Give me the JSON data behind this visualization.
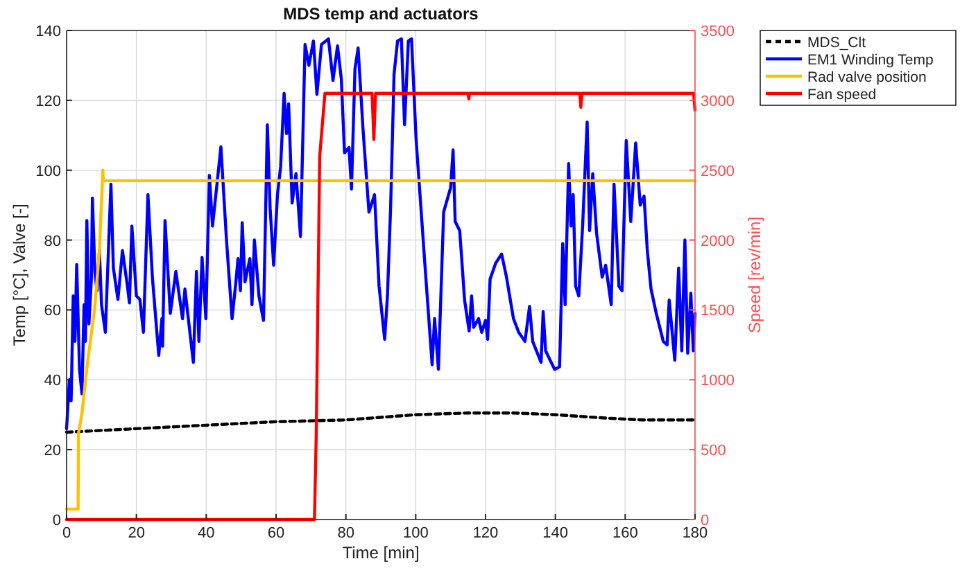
{
  "chart_data": {
    "type": "line",
    "title": "MDS temp and actuators",
    "xlabel": "Time [min]",
    "ylabel": "Temp [°C], Valve [-]",
    "y2label": "Speed [rev/min]",
    "xlim": [
      0,
      180
    ],
    "xticks": [
      0,
      20,
      40,
      60,
      80,
      100,
      120,
      140,
      160,
      180
    ],
    "ylim": [
      0,
      140
    ],
    "yticks": [
      0,
      20,
      40,
      60,
      80,
      100,
      120,
      140
    ],
    "y2lim": [
      0,
      3500
    ],
    "y2ticks": [
      0,
      500,
      1000,
      1500,
      2000,
      2500,
      3000,
      3500
    ],
    "grid": true,
    "legend": "right",
    "marker": "none",
    "series": [
      {
        "name": "MDS_Clt",
        "color": "#000000",
        "line_style": "dashed",
        "x": [
          0,
          20,
          40,
          60,
          80,
          100,
          115,
          128,
          140,
          155,
          165,
          180
        ],
        "values": [
          25,
          26,
          27,
          28,
          28.5,
          30,
          30.5,
          30.5,
          30,
          29,
          28.5,
          28.5
        ]
      },
      {
        "name": "EM1 Winding Temp",
        "color": "#0000ff",
        "line_style": "solid",
        "x": [
          0,
          0.8,
          1.3,
          1.9,
          2.4,
          2.9,
          3.7,
          4.4,
          5,
          5.4,
          5.8,
          6.4,
          7.1,
          7.4,
          8.1,
          8.7,
          9.4,
          10,
          11.1,
          12.7,
          13.4,
          14.7,
          16,
          17.4,
          18,
          18.7,
          20,
          21,
          22,
          23.3,
          24.6,
          26.4,
          27.3,
          27.5,
          28.2,
          29.7,
          31.3,
          33.2,
          33.9,
          36.3,
          37.2,
          37.9,
          38.8,
          39.9,
          40.9,
          41.8,
          44.2,
          45.8,
          47.4,
          48.5,
          49.1,
          49.8,
          50.3,
          51.1,
          52.5,
          53.1,
          53.8,
          55.1,
          56.4,
          57.5,
          58.3,
          59.3,
          60.4,
          61.3,
          62.3,
          63,
          63.6,
          64.6,
          65.7,
          67,
          68.3,
          69.4,
          70.7,
          71.7,
          73,
          75,
          76.3,
          77.6,
          78.7,
          79.6,
          80.9,
          81.6,
          82.6,
          83.5,
          84.9,
          86.6,
          88.2,
          89.5,
          91.1,
          91.9,
          92.8,
          93.8,
          94.8,
          95.9,
          96.8,
          97.9,
          98.8,
          100.1,
          102.7,
          104.7,
          105.4,
          106.5,
          108,
          110,
          110.7,
          111.3,
          112.6,
          114,
          115.3,
          116,
          116.6,
          118,
          118.9,
          120,
          120.6,
          121.3,
          122.9,
          124.6,
          126,
          128,
          129.5,
          131.3,
          132.6,
          133.5,
          135.9,
          136.5,
          137.2,
          138.5,
          139.8,
          141.2,
          142.1,
          142.8,
          143.8,
          144.5,
          145.1,
          145.8,
          146.7,
          147.8,
          149.1,
          149.8,
          150.7,
          151.8,
          153.4,
          154.4,
          156,
          156.8,
          158.2,
          159.1,
          160.3,
          161.6,
          163,
          164.3,
          165.4,
          166.3,
          167.4,
          168.9,
          170.9,
          172,
          172.6,
          174.2,
          175.3,
          176.2,
          177.1,
          177.9,
          178.8,
          179.5,
          180
        ],
        "values": [
          26,
          40,
          34,
          64,
          51,
          73,
          43,
          36,
          61.5,
          51,
          85.6,
          56,
          69,
          92,
          71,
          65.5,
          77,
          61.5,
          53.6,
          96,
          72,
          63,
          77,
          67,
          62,
          84,
          64,
          63,
          53.6,
          93,
          69,
          47,
          57.5,
          49.6,
          85.6,
          59,
          71,
          57.5,
          66,
          45,
          71,
          51,
          75,
          57.5,
          98.5,
          84,
          106.7,
          80,
          57.5,
          68,
          74.7,
          65.5,
          85,
          68,
          74.7,
          61.5,
          80,
          64,
          57,
          113,
          89,
          72.8,
          93,
          101,
          122,
          110.5,
          119,
          90.6,
          99,
          81,
          136,
          130,
          137,
          121.7,
          136,
          137.6,
          125.7,
          135.6,
          126,
          105,
          106.5,
          94.6,
          129,
          135,
          111.8,
          88,
          93,
          66.8,
          51.6,
          64,
          89,
          127.6,
          137,
          137.6,
          113,
          137,
          137.6,
          109,
          72,
          44.3,
          57.5,
          43,
          88,
          95,
          105.8,
          85.3,
          82.7,
          62.8,
          54,
          64,
          55,
          57.5,
          53.6,
          57,
          51.6,
          68.8,
          73.4,
          76,
          69.4,
          57.5,
          53.6,
          51,
          61,
          51,
          45,
          59.5,
          48.3,
          45.6,
          43,
          43.7,
          79,
          61.5,
          101.9,
          84,
          93,
          66.8,
          64,
          84,
          113.8,
          82.7,
          99,
          82,
          69.4,
          72.8,
          61.5,
          96,
          66.8,
          65.5,
          108.5,
          85.3,
          107.8,
          90,
          92.6,
          77.4,
          66,
          59,
          51,
          50,
          62.8,
          45.6,
          72,
          48.3,
          80,
          47.6,
          64.8,
          48.3,
          59
        ]
      },
      {
        "name": "Rad valve position",
        "color": "#ffc000",
        "line_style": "solid",
        "x": [
          0,
          3.3,
          3.4,
          4.4,
          6,
          8,
          9.4,
          10.4,
          10.5,
          11,
          180
        ],
        "values": [
          3,
          3,
          24.5,
          30.4,
          45,
          60,
          77,
          100,
          97,
          97,
          97
        ]
      },
      {
        "name": "Fan speed",
        "color": "#ff0000",
        "line_style": "solid",
        "axis": "y2",
        "x": [
          0,
          71,
          71.5,
          72.5,
          74,
          87.5,
          88,
          88.5,
          115,
          115.2,
          115.4,
          147,
          147.3,
          147.6,
          179.6,
          180
        ],
        "values": [
          0,
          0,
          600,
          2600,
          3050,
          3050,
          2720,
          3050,
          3050,
          3010,
          3050,
          3050,
          2950,
          3050,
          3050,
          2930
        ]
      }
    ]
  }
}
